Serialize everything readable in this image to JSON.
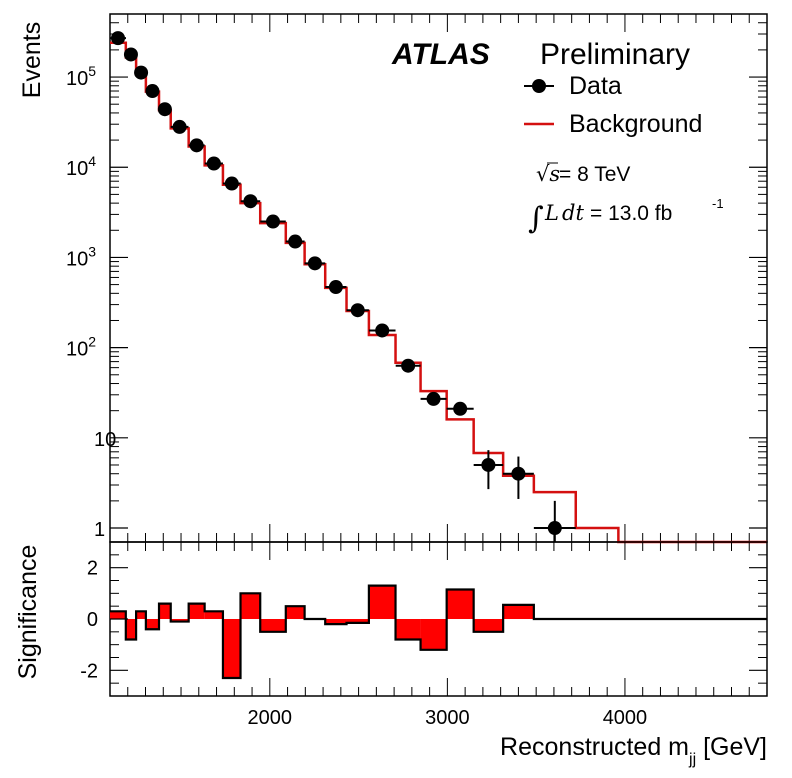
{
  "chart_data": {
    "type": "histogram",
    "title_bold": "ATLAS",
    "title_rest": "Preliminary",
    "energy_label": {
      "sqrt_s": "√s",
      "text": " = 8 TeV"
    },
    "lumi_label": {
      "integral": "∫",
      "L": "L",
      "dt": "dt",
      "value": " = 13.0 fb",
      "unit_exp": "-1"
    },
    "xlabel": {
      "main": "Reconstructed m",
      "sub": "jj",
      "unit": " [GeV]"
    },
    "xlim": [
      1100,
      4800
    ],
    "xticks": [
      2000,
      3000,
      4000
    ],
    "xtick_labels": [
      "2000",
      "3000",
      "4000"
    ],
    "top_panel": {
      "ylabel": "Events",
      "yscale": "log",
      "ylim": [
        0.7,
        500000
      ],
      "yticks": [
        1,
        10,
        100,
        1000,
        10000,
        100000
      ],
      "ytick_labels": [
        {
          "base": "1",
          "exp": ""
        },
        {
          "base": "10",
          "exp": ""
        },
        {
          "base": "10",
          "exp": "2"
        },
        {
          "base": "10",
          "exp": "3"
        },
        {
          "base": "10",
          "exp": "4"
        },
        {
          "base": "10",
          "exp": "5"
        }
      ]
    },
    "bottom_panel": {
      "ylabel": "Significance",
      "ylim": [
        -3,
        3
      ],
      "yticks": [
        -2,
        0,
        2
      ],
      "ytick_labels": [
        "-2",
        "0",
        "2"
      ]
    },
    "legend": [
      {
        "label": "Data",
        "style": "marker",
        "color": "#000000"
      },
      {
        "label": "Background",
        "style": "line",
        "color": "#d41010"
      }
    ],
    "bin_edges": [
      1100,
      1189,
      1247,
      1302,
      1376,
      1442,
      1543,
      1633,
      1736,
      1835,
      1946,
      2090,
      2196,
      2312,
      2432,
      2558,
      2708,
      2849,
      2996,
      3148,
      3314,
      3487,
      3723,
      3963,
      4251,
      4534,
      4800
    ],
    "data_points": [
      {
        "x": 1145,
        "y": 270000,
        "xerr": 45
      },
      {
        "x": 1218,
        "y": 178000,
        "xerr": 29
      },
      {
        "x": 1275,
        "y": 112000,
        "xerr": 28
      },
      {
        "x": 1339,
        "y": 70000,
        "xerr": 37
      },
      {
        "x": 1409,
        "y": 44000,
        "xerr": 33
      },
      {
        "x": 1492,
        "y": 28000,
        "xerr": 50
      },
      {
        "x": 1588,
        "y": 17500,
        "xerr": 45
      },
      {
        "x": 1685,
        "y": 11000,
        "xerr": 51
      },
      {
        "x": 1786,
        "y": 6600,
        "xerr": 50
      },
      {
        "x": 1891,
        "y": 4200,
        "xerr": 55
      },
      {
        "x": 2018,
        "y": 2500,
        "xerr": 72
      },
      {
        "x": 2143,
        "y": 1500,
        "xerr": 53
      },
      {
        "x": 2254,
        "y": 860,
        "xerr": 58
      },
      {
        "x": 2372,
        "y": 470,
        "xerr": 60
      },
      {
        "x": 2495,
        "y": 260,
        "xerr": 63
      },
      {
        "x": 2633,
        "y": 155,
        "xerr": 75
      },
      {
        "x": 2779,
        "y": 63,
        "xerr": 70
      },
      {
        "x": 2922,
        "y": 27,
        "xerr": 73
      },
      {
        "x": 3072,
        "y": 21,
        "xerr": 76
      },
      {
        "x": 3231,
        "y": 5,
        "xerr": 83,
        "yerr_lo": 2.3,
        "yerr_hi": 2.3
      },
      {
        "x": 3400,
        "y": 4,
        "xerr": 87,
        "yerr_lo": 1.9,
        "yerr_hi": 2.2
      },
      {
        "x": 3605,
        "y": 1,
        "xerr": 118,
        "yerr_lo": 0.6,
        "yerr_hi": 1.0
      }
    ],
    "background": [
      240000,
      165000,
      108000,
      69000,
      43000,
      27000,
      17000,
      10500,
      6400,
      4000,
      2400,
      1450,
      840,
      460,
      255,
      138,
      68,
      33,
      16,
      6.8,
      3.8,
      2.5,
      1,
      0.7,
      0.7,
      0.7
    ],
    "significance": [
      0.3,
      -0.8,
      0.3,
      -0.4,
      0.6,
      -0.1,
      0.6,
      0.3,
      -2.3,
      1.0,
      -0.5,
      0.5,
      0.0,
      -0.2,
      -0.15,
      1.3,
      -0.8,
      -1.2,
      1.15,
      -0.5,
      0.55,
      0.0
    ],
    "colors": {
      "background": "#d41010",
      "significance_fill": "#ff0000",
      "data": "#000000"
    }
  }
}
